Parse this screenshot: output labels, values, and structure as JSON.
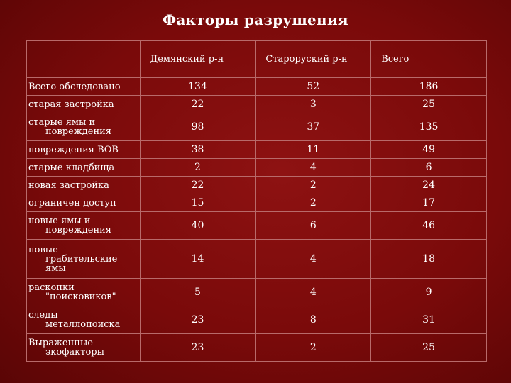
{
  "slide": {
    "title": "Факторы разрушения"
  },
  "table": {
    "columns": [
      "Демянский р-н",
      "Староруский р-н",
      "Всего"
    ],
    "rows": [
      {
        "label_lines": [
          "Всего обследовано"
        ],
        "values": [
          "134",
          "52",
          "186"
        ]
      },
      {
        "label_lines": [
          "старая застройка"
        ],
        "values": [
          "22",
          "3",
          "25"
        ]
      },
      {
        "label_lines": [
          "старые ямы и",
          "повреждения"
        ],
        "values": [
          "98",
          "37",
          "135"
        ]
      },
      {
        "label_lines": [
          "повреждения ВОВ"
        ],
        "values": [
          "38",
          "11",
          "49"
        ]
      },
      {
        "label_lines": [
          "старые кладбища"
        ],
        "values": [
          "2",
          "4",
          "6"
        ]
      },
      {
        "label_lines": [
          "новая застройка"
        ],
        "values": [
          "22",
          "2",
          "24"
        ]
      },
      {
        "label_lines": [
          "ограничен доступ"
        ],
        "values": [
          "15",
          "2",
          "17"
        ]
      },
      {
        "label_lines": [
          "новые ямы и",
          "повреждения"
        ],
        "values": [
          "40",
          "6",
          "46"
        ]
      },
      {
        "label_lines": [
          "новые",
          "грабительские",
          "ямы"
        ],
        "values": [
          "14",
          "4",
          "18"
        ]
      },
      {
        "label_lines": [
          "раскопки",
          "\"поисковиков\""
        ],
        "values": [
          "5",
          "4",
          "9"
        ]
      },
      {
        "label_lines": [
          "следы",
          "металлопоиска"
        ],
        "values": [
          "23",
          "8",
          "31"
        ]
      },
      {
        "label_lines": [
          "Выраженные",
          "экофакторы"
        ],
        "values": [
          "23",
          "2",
          "25"
        ]
      }
    ]
  }
}
